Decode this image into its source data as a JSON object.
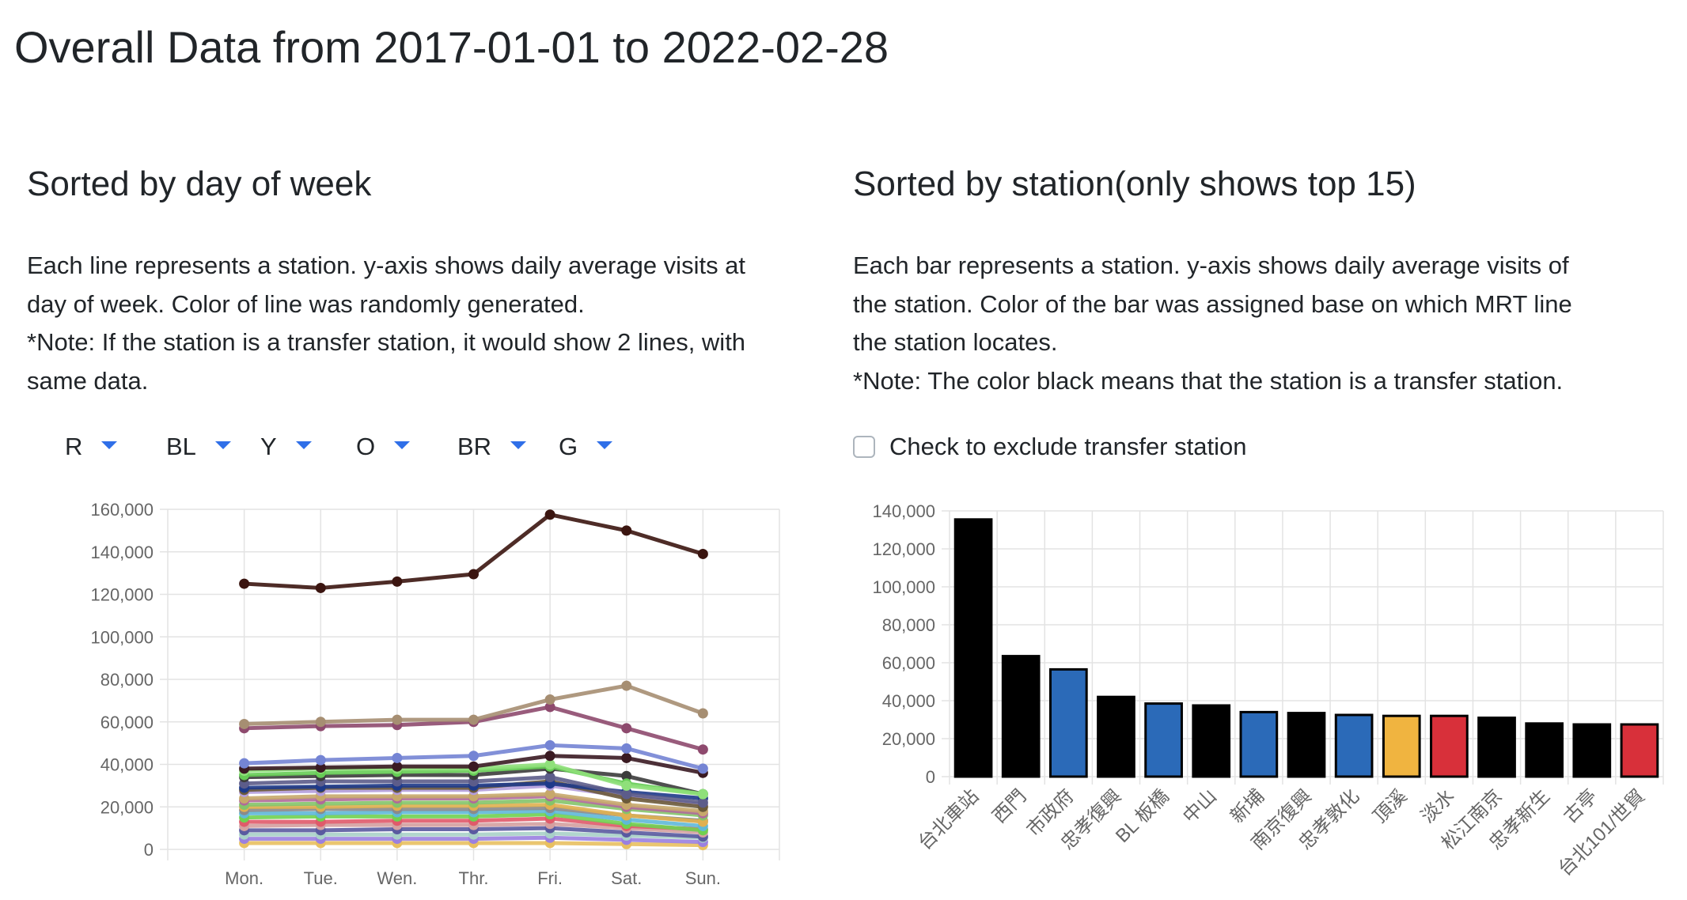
{
  "page_title": "Overall Data from 2017-01-01 to 2022-02-28",
  "left": {
    "heading": "Sorted by day of week",
    "desc": [
      "Each line represents a station. y-axis shows daily average visits at",
      "day of week. Color of line was randomly generated.",
      "*Note: If the station is a transfer station, it would show 2 lines, with",
      "same data."
    ],
    "filters": [
      "R",
      "BL",
      "Y",
      "O",
      "BR",
      "G"
    ]
  },
  "right": {
    "heading": "Sorted by station(only shows top 15)",
    "desc": [
      "Each bar represents a station. y-axis shows daily average visits of",
      "the station. Color of the bar was assigned base on which MRT line",
      "the station locates.",
      "*Note: The color black means that the station is a transfer station."
    ],
    "exclude_label": "Check to exclude transfer station",
    "exclude_checked": false
  },
  "chart_data": [
    {
      "type": "line",
      "categories": [
        "Mon.",
        "Tue.",
        "Wen.",
        "Thr.",
        "Fri.",
        "Sat.",
        "Sun."
      ],
      "ylim": [
        0,
        160000
      ],
      "yticks": [
        0,
        20000,
        40000,
        60000,
        80000,
        100000,
        120000,
        140000,
        160000
      ],
      "grid": true,
      "series": [
        {
          "color": "#3b1510",
          "values": [
            125000,
            123000,
            126000,
            129500,
            157500,
            150000,
            139000
          ]
        },
        {
          "color": "#a68e72",
          "values": [
            59000,
            60000,
            61000,
            61000,
            70500,
            77000,
            64000
          ]
        },
        {
          "color": "#8e4a6e",
          "values": [
            57000,
            58000,
            58500,
            60000,
            67000,
            57000,
            47000
          ]
        },
        {
          "color": "#7484d4",
          "values": [
            40500,
            42000,
            43000,
            44000,
            49000,
            47500,
            38000
          ]
        },
        {
          "color": "#3a1a22",
          "values": [
            38000,
            38500,
            39000,
            39000,
            44000,
            43000,
            36000
          ]
        },
        {
          "color": "#8fe07a",
          "values": [
            37000,
            38000,
            38000,
            38000,
            40000,
            30000,
            26000
          ]
        },
        {
          "color": "#66cc55",
          "values": [
            35000,
            36000,
            36500,
            37000,
            39000,
            31000,
            26000
          ]
        },
        {
          "color": "#3c3c3c",
          "values": [
            34000,
            34500,
            35000,
            35000,
            38000,
            34500,
            26000
          ]
        },
        {
          "color": "#5c5c8a",
          "values": [
            31000,
            32000,
            32000,
            32000,
            34000,
            26000,
            22000
          ]
        },
        {
          "color": "#1e3a8a",
          "values": [
            29000,
            29500,
            30000,
            30000,
            31000,
            27000,
            24000
          ]
        },
        {
          "color": "#6b5a3a",
          "values": [
            28000,
            29000,
            29000,
            29000,
            32000,
            24000,
            20000
          ]
        },
        {
          "color": "#b39ddb",
          "values": [
            27000,
            27500,
            28000,
            28000,
            30000,
            25000,
            21000
          ]
        },
        {
          "color": "#c7a86b",
          "values": [
            24000,
            25000,
            25000,
            25000,
            26000,
            21000,
            18000
          ]
        },
        {
          "color": "#b06a9a",
          "values": [
            23000,
            23500,
            24000,
            24000,
            25000,
            20000,
            17000
          ]
        },
        {
          "color": "#84c46a",
          "values": [
            21000,
            21500,
            22000,
            22000,
            23000,
            19000,
            16000
          ]
        },
        {
          "color": "#e0b050",
          "values": [
            20000,
            20000,
            20500,
            20500,
            21000,
            16000,
            13000
          ]
        },
        {
          "color": "#8a8a8a",
          "values": [
            18500,
            19000,
            19000,
            19000,
            19500,
            16000,
            13500
          ]
        },
        {
          "color": "#5fb8d8",
          "values": [
            17000,
            17000,
            17500,
            17500,
            18000,
            14000,
            11000
          ]
        },
        {
          "color": "#70d050",
          "values": [
            15000,
            15500,
            15500,
            15500,
            16500,
            12000,
            9000
          ]
        },
        {
          "color": "#e05a6a",
          "values": [
            13000,
            13000,
            13500,
            13500,
            14500,
            11000,
            9500
          ]
        },
        {
          "color": "#d4a0a0",
          "values": [
            11000,
            11500,
            11500,
            11500,
            12000,
            10000,
            8000
          ]
        },
        {
          "color": "#5a5aa0",
          "values": [
            9000,
            9000,
            9500,
            9500,
            10000,
            8000,
            6000
          ]
        },
        {
          "color": "#a8d0c8",
          "values": [
            7000,
            7000,
            7000,
            7000,
            7500,
            6500,
            5500
          ]
        },
        {
          "color": "#9a80e0",
          "values": [
            5000,
            5000,
            5000,
            5000,
            5500,
            4500,
            3500
          ]
        },
        {
          "color": "#e8c060",
          "values": [
            3000,
            3000,
            3000,
            3000,
            3000,
            2500,
            2000
          ]
        }
      ]
    },
    {
      "type": "bar",
      "categories": [
        "台北車站",
        "西門",
        "市政府",
        "忠孝復興",
        "BL 板橋",
        "中山",
        "新埔",
        "南京復興",
        "忠孝敦化",
        "頂溪",
        "淡水",
        "松江南京",
        "忠孝新生",
        "古亭",
        "台北101/世貿"
      ],
      "values": [
        135500,
        63500,
        56500,
        42000,
        38500,
        37500,
        34000,
        33500,
        32500,
        32000,
        32000,
        31000,
        28000,
        27500,
        27500
      ],
      "colors": [
        "#000000",
        "#000000",
        "#2b6ab8",
        "#000000",
        "#2b6ab8",
        "#000000",
        "#2b6ab8",
        "#000000",
        "#2b6ab8",
        "#f0b440",
        "#d8303a",
        "#000000",
        "#000000",
        "#000000",
        "#d8303a"
      ],
      "ylim": [
        0,
        140000
      ],
      "yticks": [
        0,
        20000,
        40000,
        60000,
        80000,
        100000,
        120000,
        140000
      ],
      "grid": true
    }
  ]
}
